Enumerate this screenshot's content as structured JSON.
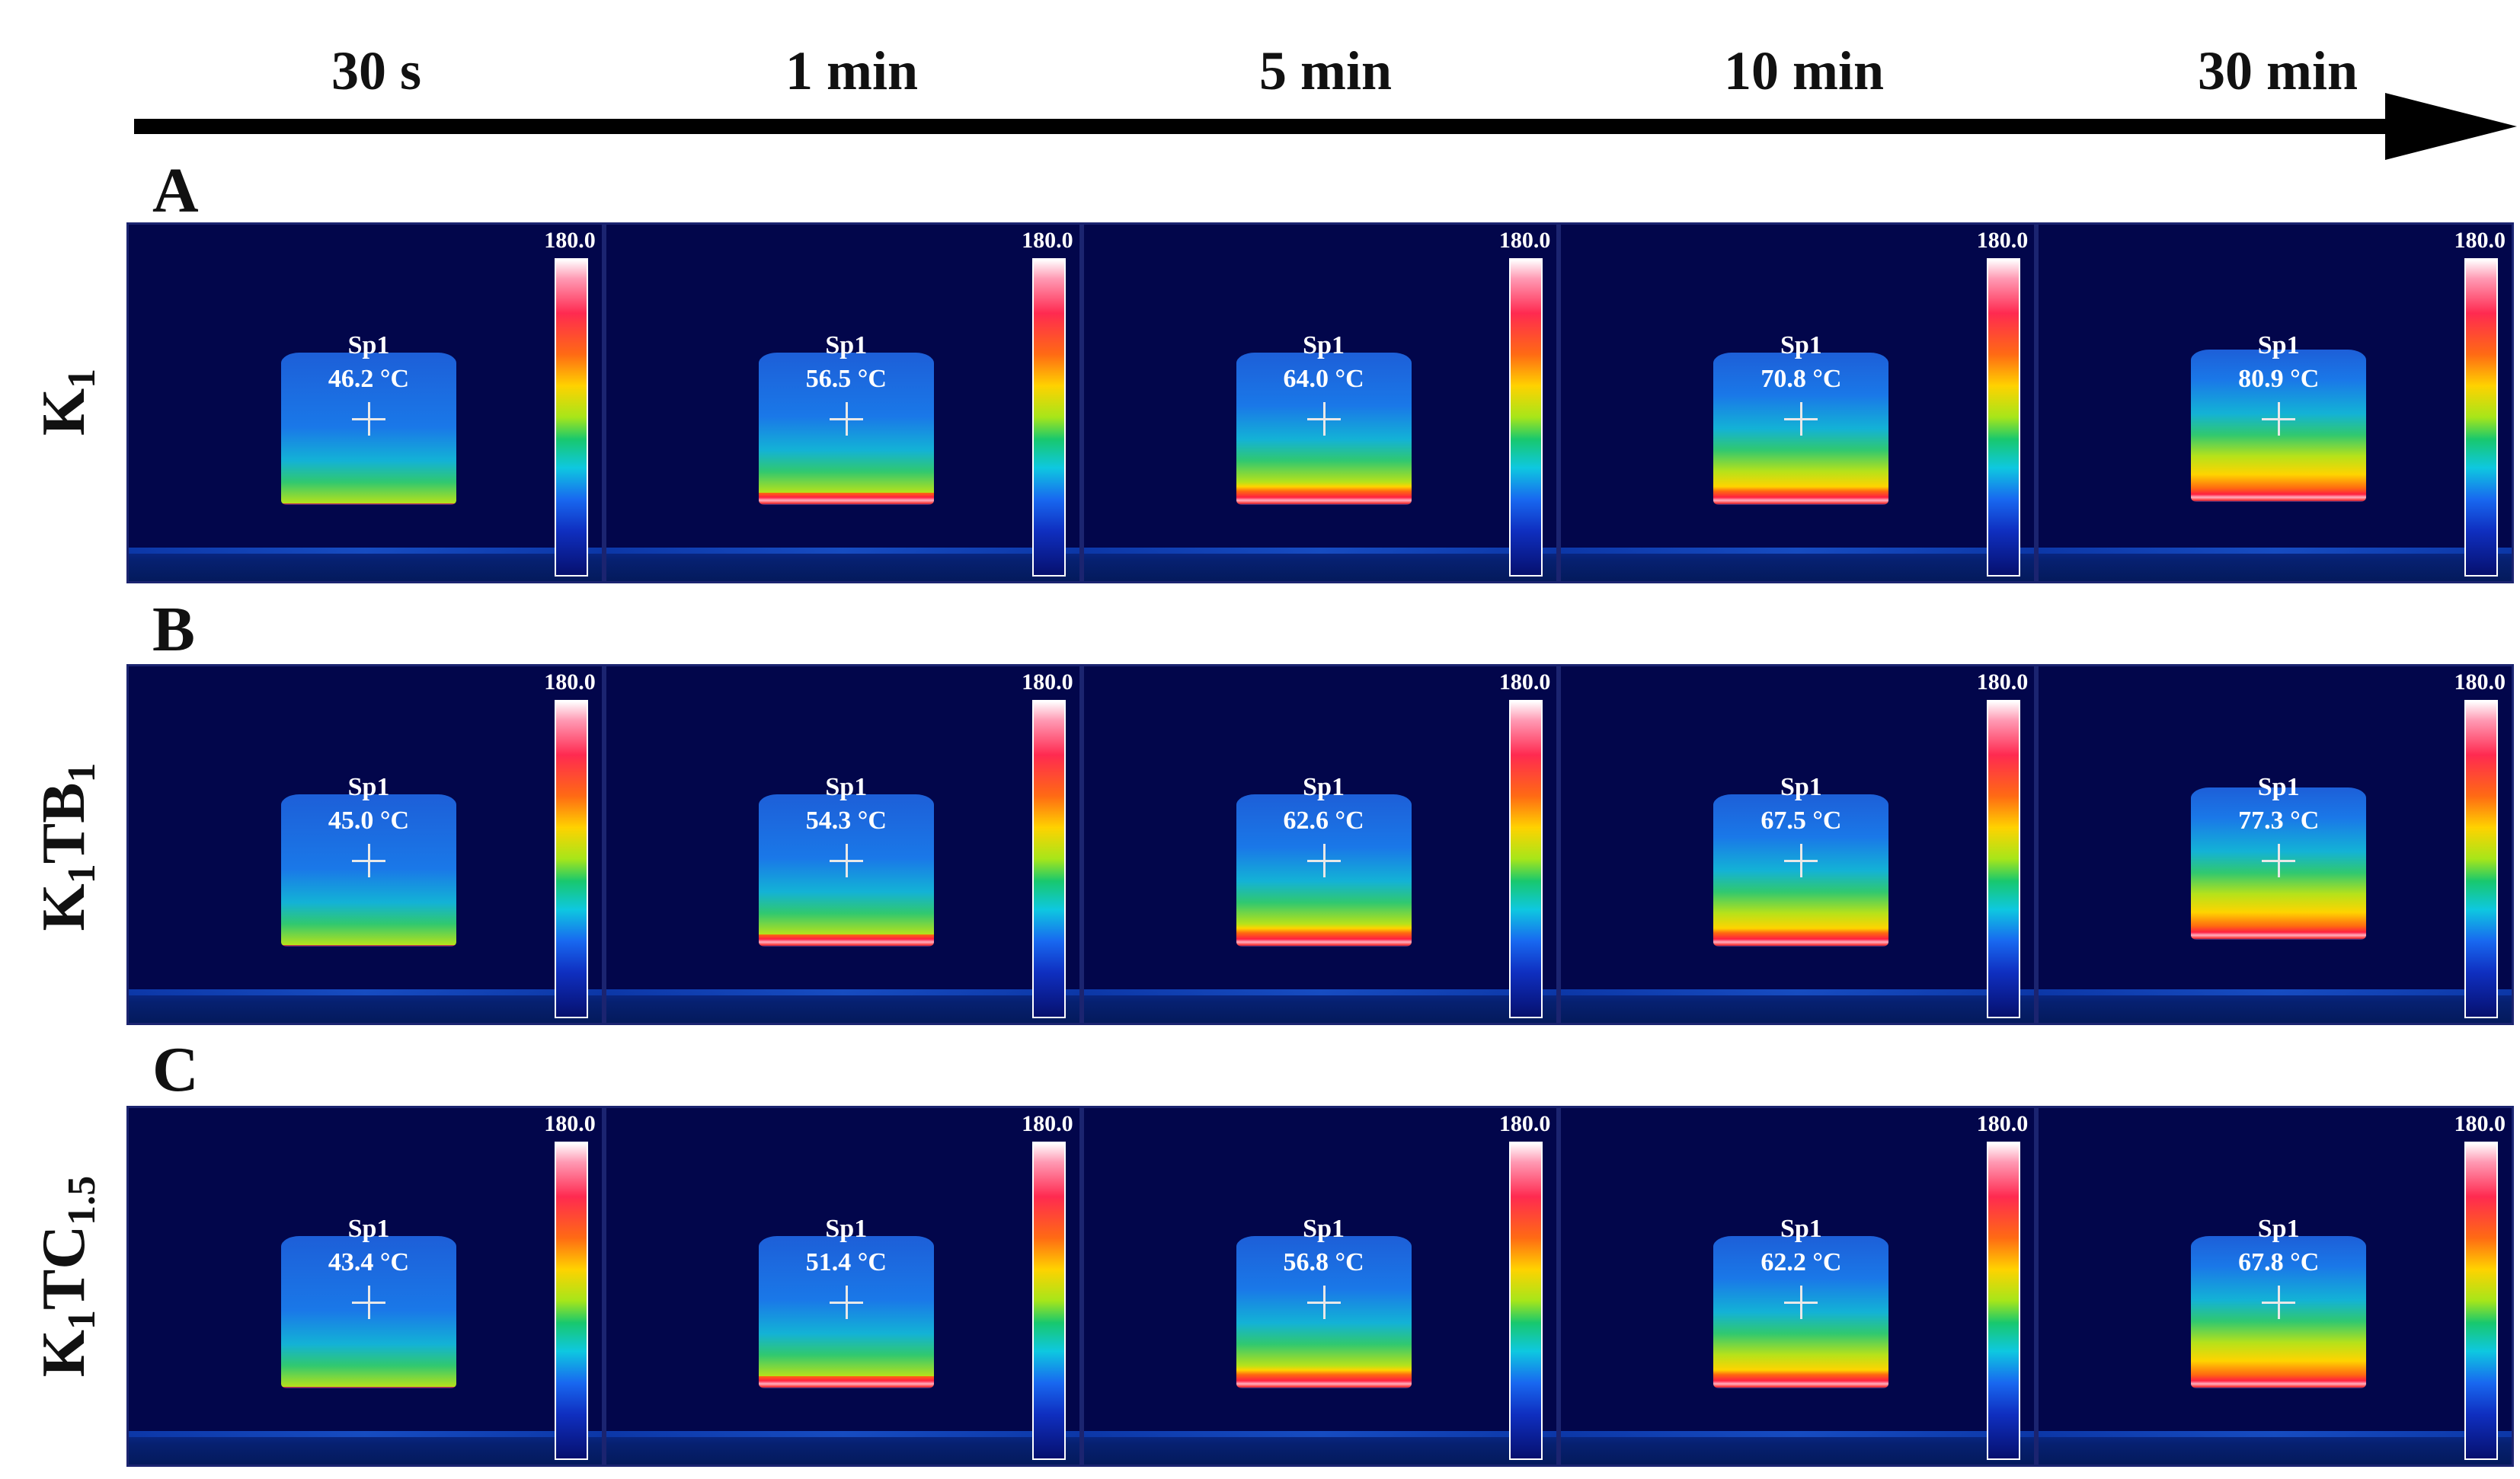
{
  "timeline": {
    "labels": [
      "30 s",
      "1 min",
      "5 min",
      "10 min",
      "30 min"
    ]
  },
  "rows": [
    {
      "letter": "A",
      "label_main": "K",
      "label_parts": [
        {
          "text": "K"
        },
        {
          "sub": "1"
        }
      ],
      "readings": [
        {
          "spot": "Sp1",
          "temp": "46.2 °C",
          "scale": "180.0"
        },
        {
          "spot": "Sp1",
          "temp": "56.5 °C",
          "scale": "180.0"
        },
        {
          "spot": "Sp1",
          "temp": "64.0 °C",
          "scale": "180.0"
        },
        {
          "spot": "Sp1",
          "temp": "70.8 °C",
          "scale": "180.0"
        },
        {
          "spot": "Sp1",
          "temp": "80.9 °C",
          "scale": "180.0"
        }
      ]
    },
    {
      "letter": "B",
      "label_parts": [
        {
          "text": "K"
        },
        {
          "sub": "1"
        },
        {
          "text": "TB"
        },
        {
          "sub": "1"
        }
      ],
      "readings": [
        {
          "spot": "Sp1",
          "temp": "45.0 °C",
          "scale": "180.0"
        },
        {
          "spot": "Sp1",
          "temp": "54.3 °C",
          "scale": "180.0"
        },
        {
          "spot": "Sp1",
          "temp": "62.6 °C",
          "scale": "180.0"
        },
        {
          "spot": "Sp1",
          "temp": "67.5 °C",
          "scale": "180.0"
        },
        {
          "spot": "Sp1",
          "temp": "77.3 °C",
          "scale": "180.0"
        }
      ]
    },
    {
      "letter": "C",
      "label_parts": [
        {
          "text": "K"
        },
        {
          "sub": "1"
        },
        {
          "text": "TC"
        },
        {
          "sub": "1.5"
        }
      ],
      "readings": [
        {
          "spot": "Sp1",
          "temp": "43.4 °C",
          "scale": "180.0"
        },
        {
          "spot": "Sp1",
          "temp": "51.4 °C",
          "scale": "180.0"
        },
        {
          "spot": "Sp1",
          "temp": "56.8 °C",
          "scale": "180.0"
        },
        {
          "spot": "Sp1",
          "temp": "62.2 °C",
          "scale": "180.0"
        },
        {
          "spot": "Sp1",
          "temp": "67.8 °C",
          "scale": "180.0"
        }
      ]
    }
  ],
  "colors": {
    "background": "#02064b",
    "hot": "#ff2a50",
    "warm": "#ffd200",
    "mid": "#18c86e",
    "cool": "#1868f0"
  }
}
